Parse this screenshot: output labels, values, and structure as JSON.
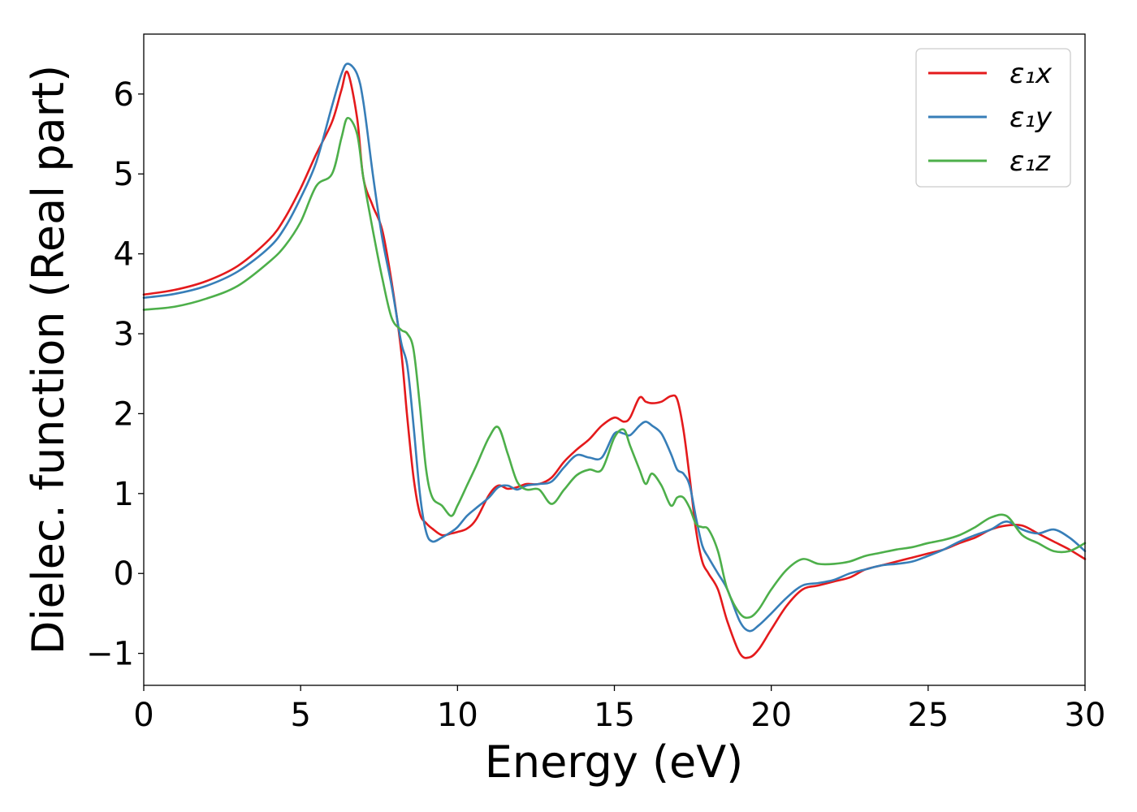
{
  "chart_data": {
    "type": "line",
    "title": "",
    "xlabel": "Energy (eV)",
    "ylabel": "Dielec. function (Real part)",
    "xlim": [
      0,
      30
    ],
    "ylim": [
      -1.4,
      6.75
    ],
    "xticks": [
      0,
      5,
      10,
      15,
      20,
      25,
      30
    ],
    "xtick_labels": [
      "0",
      "5",
      "10",
      "15",
      "20",
      "25",
      "30"
    ],
    "yticks": [
      -1,
      0,
      1,
      2,
      3,
      4,
      5,
      6
    ],
    "ytick_labels": [
      "−1",
      "0",
      "1",
      "2",
      "3",
      "4",
      "5",
      "6"
    ],
    "grid": false,
    "legend_position": "top-right",
    "series": [
      {
        "name": "ε₁x",
        "color": "#e41a1c",
        "x": [
          0,
          1,
          2,
          3,
          4,
          4.5,
          5,
          5.5,
          6,
          6.3,
          6.5,
          6.8,
          7,
          7.3,
          7.6,
          7.9,
          8.2,
          8.4,
          8.6,
          8.8,
          9,
          9.2,
          9.5,
          9.8,
          10,
          10.3,
          10.6,
          11,
          11.3,
          11.6,
          11.9,
          12.2,
          12.6,
          13,
          13.4,
          13.8,
          14.2,
          14.6,
          15,
          15.3,
          15.5,
          15.8,
          16,
          16.2,
          16.5,
          16.8,
          17,
          17.2,
          17.4,
          17.6,
          17.8,
          18,
          18.3,
          18.6,
          19,
          19.3,
          19.6,
          20,
          20.5,
          21,
          21.5,
          22,
          22.5,
          23,
          23.5,
          24,
          24.5,
          25,
          25.5,
          26,
          26.5,
          27,
          27.5,
          28,
          28.5,
          29,
          29.5,
          30
        ],
        "y": [
          3.49,
          3.55,
          3.66,
          3.85,
          4.18,
          4.45,
          4.82,
          5.25,
          5.65,
          6.05,
          6.27,
          5.7,
          4.95,
          4.6,
          4.3,
          3.65,
          2.8,
          1.95,
          1.2,
          0.75,
          0.63,
          0.56,
          0.48,
          0.5,
          0.52,
          0.56,
          0.68,
          0.98,
          1.1,
          1.06,
          1.08,
          1.12,
          1.12,
          1.2,
          1.4,
          1.55,
          1.68,
          1.85,
          1.95,
          1.9,
          1.95,
          2.2,
          2.15,
          2.13,
          2.15,
          2.22,
          2.18,
          1.8,
          1.2,
          0.55,
          0.15,
          0,
          -0.2,
          -0.6,
          -1.0,
          -1.05,
          -0.95,
          -0.7,
          -0.4,
          -0.2,
          -0.15,
          -0.1,
          -0.05,
          0.05,
          0.1,
          0.15,
          0.2,
          0.25,
          0.3,
          0.38,
          0.45,
          0.55,
          0.6,
          0.6,
          0.5,
          0.4,
          0.3,
          0.18
        ]
      },
      {
        "name": "ε₁y",
        "color": "#377eb8",
        "x": [
          0,
          1,
          2,
          3,
          4,
          4.5,
          5,
          5.5,
          6,
          6.3,
          6.5,
          6.8,
          7,
          7.3,
          7.6,
          7.9,
          8.2,
          8.4,
          8.6,
          8.8,
          9,
          9.2,
          9.5,
          9.8,
          10,
          10.3,
          10.6,
          11,
          11.3,
          11.6,
          11.9,
          12.2,
          12.6,
          13,
          13.4,
          13.8,
          14.2,
          14.6,
          15,
          15.3,
          15.5,
          15.8,
          16,
          16.2,
          16.5,
          16.8,
          17,
          17.2,
          17.4,
          17.6,
          17.8,
          18,
          18.3,
          18.6,
          19,
          19.3,
          19.6,
          20,
          20.5,
          21,
          21.5,
          22,
          22.5,
          23,
          23.5,
          24,
          24.5,
          25,
          25.5,
          26,
          26.5,
          27,
          27.5,
          28,
          28.5,
          29,
          29.5,
          30
        ],
        "y": [
          3.45,
          3.5,
          3.6,
          3.78,
          4.08,
          4.33,
          4.7,
          5.15,
          5.85,
          6.25,
          6.38,
          6.25,
          5.9,
          5.0,
          4.2,
          3.6,
          2.9,
          2.6,
          1.85,
          1.0,
          0.52,
          0.4,
          0.45,
          0.52,
          0.58,
          0.72,
          0.82,
          0.95,
          1.08,
          1.1,
          1.05,
          1.1,
          1.12,
          1.15,
          1.33,
          1.48,
          1.45,
          1.45,
          1.75,
          1.75,
          1.73,
          1.85,
          1.9,
          1.85,
          1.75,
          1.5,
          1.3,
          1.25,
          1.1,
          0.7,
          0.35,
          0.2,
          0,
          -0.2,
          -0.6,
          -0.72,
          -0.65,
          -0.5,
          -0.3,
          -0.15,
          -0.12,
          -0.08,
          0,
          0.05,
          0.1,
          0.12,
          0.15,
          0.22,
          0.3,
          0.4,
          0.48,
          0.55,
          0.65,
          0.55,
          0.5,
          0.55,
          0.45,
          0.28
        ]
      },
      {
        "name": "ε₁z",
        "color": "#4daf4a",
        "x": [
          0,
          1,
          2,
          3,
          4,
          4.5,
          5,
          5.5,
          6,
          6.3,
          6.5,
          6.8,
          7,
          7.3,
          7.6,
          7.9,
          8.2,
          8.4,
          8.6,
          8.8,
          9,
          9.2,
          9.5,
          9.8,
          10,
          10.3,
          10.6,
          11,
          11.3,
          11.6,
          11.9,
          12.2,
          12.6,
          13,
          13.4,
          13.8,
          14.2,
          14.6,
          15,
          15.3,
          15.5,
          15.8,
          16,
          16.2,
          16.5,
          16.8,
          17,
          17.2,
          17.4,
          17.6,
          17.8,
          18,
          18.3,
          18.6,
          19,
          19.3,
          19.6,
          20,
          20.5,
          21,
          21.5,
          22,
          22.5,
          23,
          23.5,
          24,
          24.5,
          25,
          25.5,
          26,
          26.5,
          27,
          27.5,
          28,
          28.5,
          29,
          29.5,
          30
        ],
        "y": [
          3.3,
          3.34,
          3.44,
          3.6,
          3.9,
          4.1,
          4.4,
          4.85,
          5.0,
          5.45,
          5.7,
          5.5,
          4.95,
          4.3,
          3.7,
          3.2,
          3.05,
          3.0,
          2.8,
          2.1,
          1.3,
          0.95,
          0.85,
          0.72,
          0.85,
          1.1,
          1.35,
          1.7,
          1.83,
          1.5,
          1.15,
          1.05,
          1.05,
          0.87,
          1.05,
          1.23,
          1.3,
          1.3,
          1.7,
          1.8,
          1.6,
          1.3,
          1.12,
          1.25,
          1.1,
          0.85,
          0.95,
          0.95,
          0.82,
          0.62,
          0.58,
          0.55,
          0.28,
          -0.2,
          -0.5,
          -0.55,
          -0.45,
          -0.2,
          0.05,
          0.18,
          0.12,
          0.12,
          0.15,
          0.22,
          0.26,
          0.3,
          0.33,
          0.38,
          0.42,
          0.48,
          0.58,
          0.7,
          0.72,
          0.48,
          0.38,
          0.28,
          0.28,
          0.38
        ]
      }
    ]
  }
}
